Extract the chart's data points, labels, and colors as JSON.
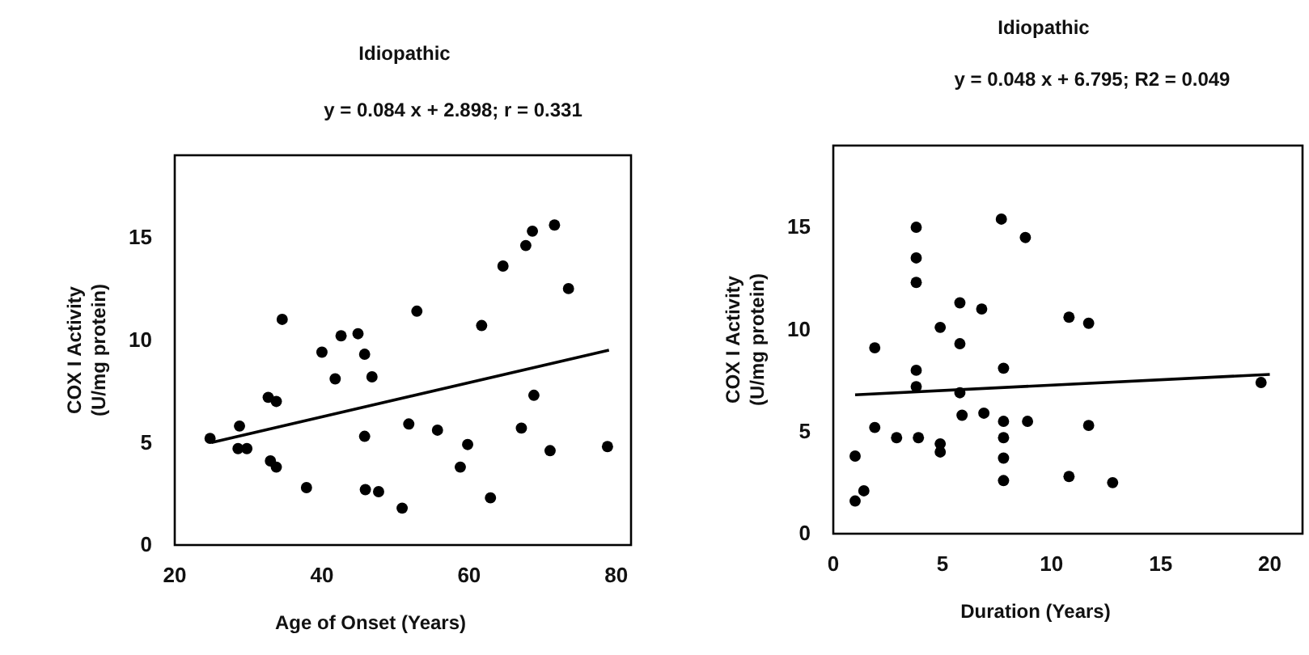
{
  "chart_data": [
    {
      "type": "scatter",
      "title": "Idiopathic",
      "subtitle": "y = 0.084 x + 2.898; r = 0.331",
      "xlabel": "Age of Onset (Years)",
      "ylabel": "COX I Activity\n(U/mg protein)",
      "xlim": [
        20,
        82
      ],
      "ylim": [
        0,
        19
      ],
      "xticks": [
        20,
        40,
        60,
        80
      ],
      "yticks": [
        0,
        5,
        10,
        15
      ],
      "grid": false,
      "series": [
        {
          "marker": "circle",
          "color": "#000000",
          "x": [
            24.8,
            28.8,
            28.6,
            29.8,
            32.7,
            33.8,
            33.0,
            33.8,
            34.6,
            37.9,
            40.0,
            41.8,
            42.6,
            44.9,
            45.8,
            46.8,
            45.8,
            45.9,
            47.7,
            50.9,
            51.8,
            52.9,
            55.7,
            58.8,
            59.8,
            61.7,
            62.9,
            64.6,
            67.1,
            67.7,
            68.6,
            68.8,
            71.6,
            71.0,
            73.5,
            78.8
          ],
          "values": [
            5.2,
            5.8,
            4.7,
            4.7,
            7.2,
            7.0,
            4.1,
            3.8,
            11.0,
            2.8,
            9.4,
            8.1,
            10.2,
            10.3,
            9.3,
            8.2,
            5.3,
            2.7,
            2.6,
            1.8,
            5.9,
            11.4,
            5.6,
            3.8,
            4.9,
            10.7,
            2.3,
            13.6,
            5.7,
            14.6,
            15.3,
            7.3,
            15.6,
            4.6,
            12.5,
            4.8
          ]
        },
        {
          "type": "line",
          "marker": "none",
          "color": "#000000",
          "line_style": "solid",
          "x": [
            25,
            79
          ],
          "values": [
            5.0,
            9.5
          ]
        }
      ]
    },
    {
      "type": "scatter",
      "title": "Idiopathic",
      "subtitle": "y = 0.048 x + 6.795; R2 = 0.049",
      "xlabel": "Duration (Years)",
      "ylabel": "COX I Activity\n(U/mg protein)",
      "xlim": [
        0,
        21.5
      ],
      "ylim": [
        0,
        19
      ],
      "xticks": [
        0,
        5,
        10,
        15,
        20
      ],
      "yticks": [
        0,
        5,
        10,
        15
      ],
      "grid": false,
      "series": [
        {
          "marker": "circle",
          "color": "#000000",
          "x": [
            1.0,
            1.4,
            1.0,
            1.9,
            1.9,
            2.9,
            3.8,
            3.8,
            3.8,
            3.8,
            3.8,
            3.9,
            4.9,
            4.9,
            4.9,
            5.8,
            5.8,
            5.8,
            5.9,
            6.8,
            6.9,
            7.7,
            7.8,
            7.8,
            7.8,
            7.8,
            7.8,
            8.8,
            8.9,
            10.8,
            10.8,
            11.7,
            11.7,
            12.8,
            19.6
          ],
          "values": [
            1.6,
            2.1,
            3.8,
            9.1,
            5.2,
            4.7,
            15.0,
            13.5,
            12.3,
            8.0,
            7.2,
            4.7,
            10.1,
            4.4,
            4.0,
            11.3,
            9.3,
            6.9,
            5.8,
            11.0,
            5.9,
            15.4,
            8.1,
            5.5,
            4.7,
            3.7,
            2.6,
            14.5,
            5.5,
            10.6,
            2.8,
            10.3,
            5.3,
            2.5,
            7.4
          ]
        },
        {
          "type": "line",
          "marker": "none",
          "color": "#000000",
          "line_style": "solid",
          "x": [
            1,
            20
          ],
          "values": [
            6.8,
            7.8
          ]
        }
      ]
    }
  ]
}
